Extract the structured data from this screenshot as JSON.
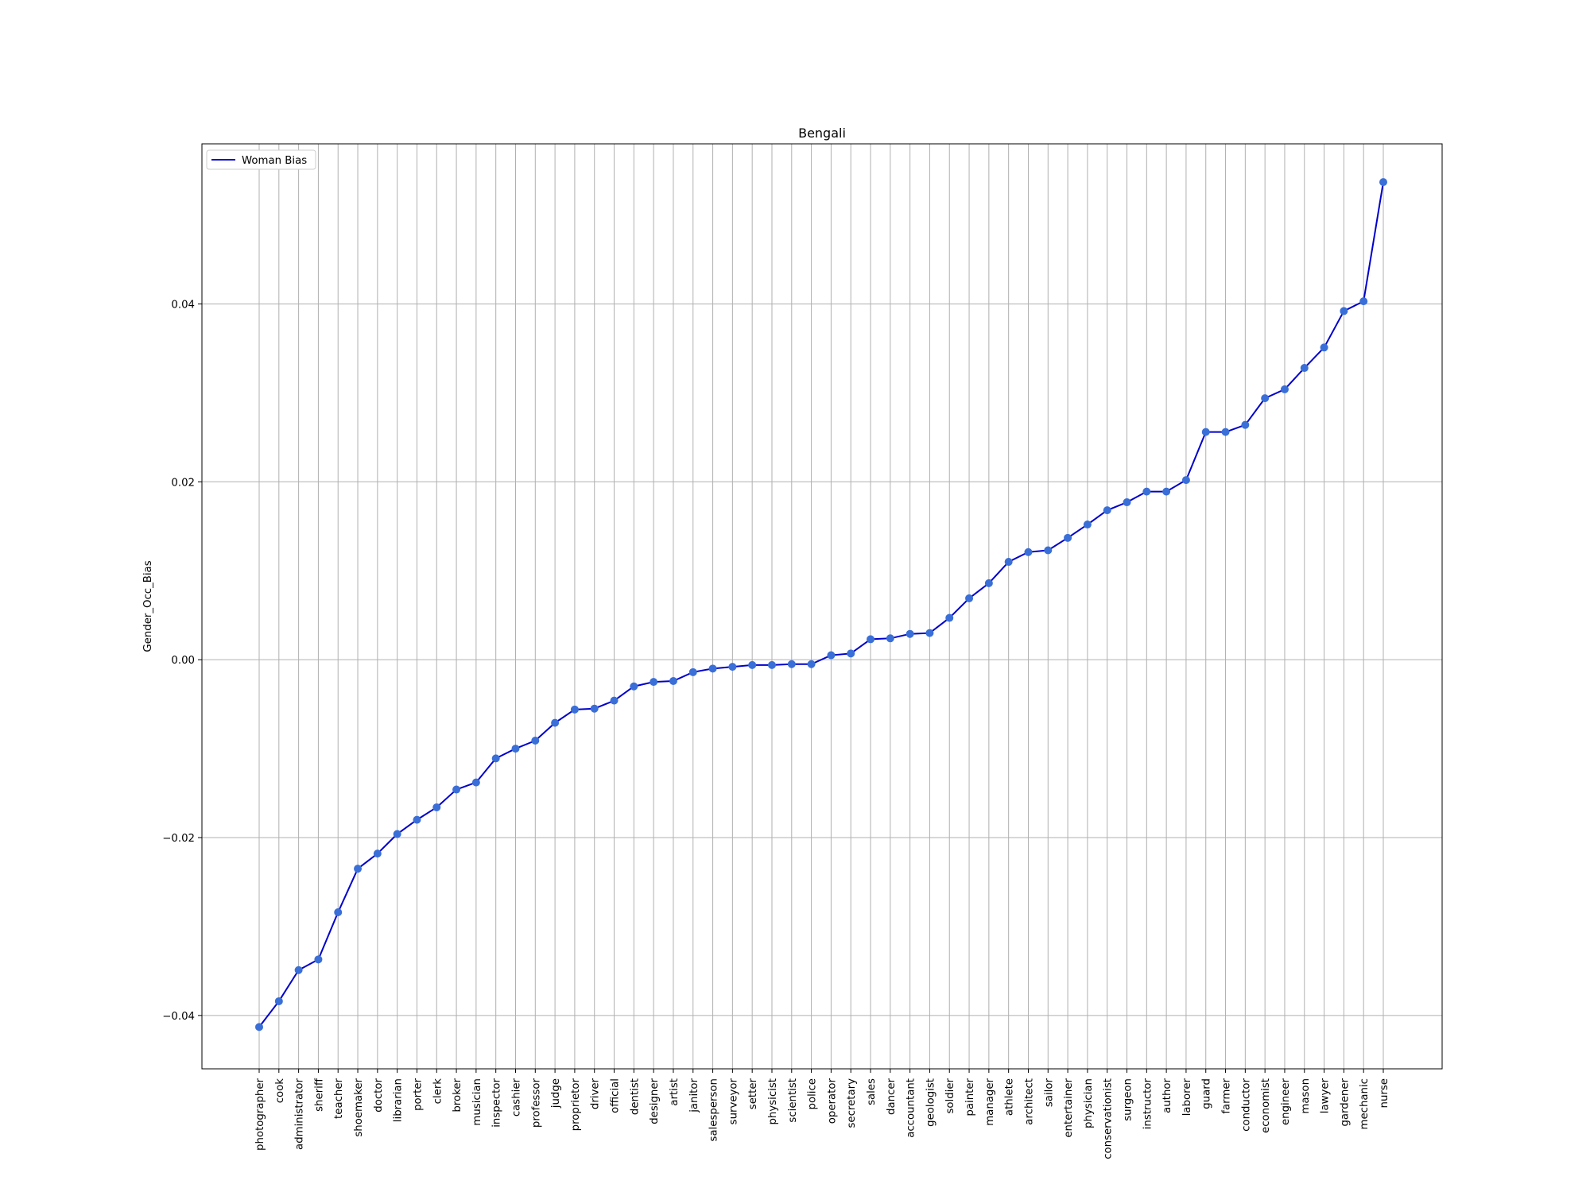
{
  "chart_data": {
    "type": "line",
    "title": "Bengali",
    "xlabel": "",
    "ylabel": "Gender_Occ_Bias",
    "ylim": [
      -0.046,
      0.058
    ],
    "yticks": [
      -0.04,
      -0.02,
      0.0,
      0.02,
      0.04
    ],
    "ytick_labels": [
      "−0.04",
      "−0.02",
      "0.00",
      "0.02",
      "0.04"
    ],
    "grid": true,
    "legend_position": "upper-left",
    "colors": {
      "line": "#0000cc",
      "marker": "#3a6fd8",
      "grid": "#b0b0b0",
      "frame": "#000000"
    },
    "categories": [
      "photographer",
      "cook",
      "administrator",
      "sheriff",
      "teacher",
      "shoemaker",
      "doctor",
      "librarian",
      "porter",
      "clerk",
      "broker",
      "musician",
      "inspector",
      "cashier",
      "professor",
      "judge",
      "proprietor",
      "driver",
      "official",
      "dentist",
      "designer",
      "artist",
      "janitor",
      "salesperson",
      "surveyor",
      "setter",
      "physicist",
      "scientist",
      "police",
      "operator",
      "secretary",
      "sales",
      "dancer",
      "accountant",
      "geologist",
      "soldier",
      "painter",
      "manager",
      "athlete",
      "architect",
      "sailor",
      "entertainer",
      "physician",
      "conservationist",
      "surgeon",
      "instructor",
      "author",
      "laborer",
      "guard",
      "farmer",
      "conductor",
      "economist",
      "engineer",
      "mason",
      "lawyer",
      "gardener",
      "mechanic",
      "nurse"
    ],
    "series": [
      {
        "name": "Woman Bias",
        "values": [
          -0.0413,
          -0.0384,
          -0.0349,
          -0.0337,
          -0.0284,
          -0.0235,
          -0.0218,
          -0.0196,
          -0.018,
          -0.0166,
          -0.0146,
          -0.0138,
          -0.0111,
          -0.01,
          -0.0091,
          -0.0071,
          -0.0056,
          -0.0055,
          -0.0046,
          -0.003,
          -0.0025,
          -0.0024,
          -0.0014,
          -0.001,
          -0.0008,
          -0.0006,
          -0.0006,
          -0.0005,
          -0.0005,
          0.0005,
          0.0007,
          0.0023,
          0.0024,
          0.0029,
          0.003,
          0.0047,
          0.0069,
          0.0086,
          0.011,
          0.0121,
          0.0123,
          0.0137,
          0.0152,
          0.0168,
          0.0177,
          0.0189,
          0.0189,
          0.0202,
          0.0256,
          0.0256,
          0.0264,
          0.0294,
          0.0304,
          0.0328,
          0.0351,
          0.0392,
          0.0403,
          0.0537
        ]
      }
    ]
  }
}
